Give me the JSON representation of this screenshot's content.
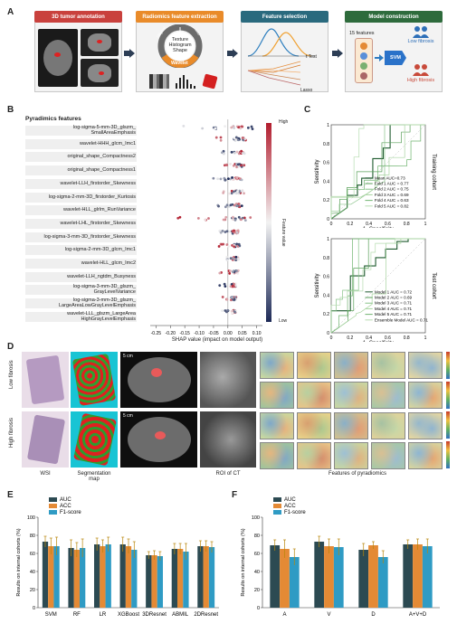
{
  "panelA": {
    "letter": "A",
    "steps": [
      {
        "title": "3D tumor annotation",
        "color": "#c9413d"
      },
      {
        "title": "Radiomics feature extraction",
        "color": "#e98b2a"
      },
      {
        "title": "Feature selection",
        "color": "#2a6a7e"
      },
      {
        "title": "Model construction",
        "color": "#2e6b3c"
      }
    ],
    "donut": {
      "center": [
        "Texture",
        "Histogram",
        "Shape"
      ],
      "outer_left": "Original",
      "outer_right": "LoG",
      "bottom": "Wavelet"
    },
    "selection": {
      "ttest": "t Test",
      "lasso": "Lasso"
    },
    "model": {
      "features": "15 features",
      "svm": "SVM",
      "low": "Low fibrosis",
      "high": "High fibrosis"
    }
  },
  "panelB": {
    "letter": "B",
    "title": "Pyradimics features",
    "features": [
      "log-sigma-5-mm-3D_glszm_\nSmallAreaEmphasis",
      "wavelet-HHH_glcm_Imc1",
      "original_shape_Compactness2",
      "original_shape_Compactness1",
      "wavelet-LLH_firstorder_Skewness",
      "log-sigma-2-mm-3D_firstorder_Kurtosis",
      "wavelet-HLL_glrlm_RunVariance",
      "wavelet-LHL_firstorder_Skewness",
      "log-sigma-3-mm-3D_firstorder_Skewness",
      "log-sigma-2-mm-3D_glcm_Imc1",
      "wavelet-HLL_glcm_Imc2",
      "wavelet-LLH_ngtdm_Busyness",
      "log-sigma-3-mm-3D_glszm_\nGrayLevelVariance",
      "log-sigma-3-mm-3D_glszm_\nLargeAreaLowGrayLevelEmphasis",
      "wavelet-LLL_glszm_LargeArea\nHighGrayLevelEmphasis"
    ],
    "xticks": [
      "-0.25",
      "-0.20",
      "-0.15",
      "-0.10",
      "-0.05",
      "0.00",
      "0.05",
      "0.10"
    ],
    "xlabel": "SHAP value (impact on model output)",
    "colorbar": {
      "high": "High",
      "low": "Low",
      "label": "Feature value"
    }
  },
  "panelC": {
    "letter": "C",
    "top": {
      "side": "Training cohort",
      "ylabel": "Sensitivity",
      "xlabel": "1 -Specificity",
      "ticks": [
        "0",
        "0.2",
        "0.4",
        "0.6",
        "0.8",
        "1"
      ],
      "legend": [
        "Mean AUC=0.73",
        "Fold 1 AUC = 0.77",
        "Fold 2 AUC = 0.75",
        "Fold 3 AUC = 0.69",
        "Fold 4 AUC = 0.63",
        "Fold 5 AUC = 0.82"
      ]
    },
    "bottom": {
      "side": "Test cohort",
      "ylabel": "Sensitivity",
      "xlabel": "1 -Specificity",
      "ticks": [
        "0",
        "0.2",
        "0.4",
        "0.6",
        "0.8",
        "1"
      ],
      "legend": [
        "Model 1 AUC = 0.72",
        "Model 2 AUC = 0.69",
        "Model 3 AUC = 0.71",
        "Model 4 AUC = 0.71",
        "Model 5 AUC = 0.71",
        "Ensemble Model AUC = 0.71"
      ]
    }
  },
  "panelD": {
    "letter": "D",
    "rows": [
      "Low fibrosis",
      "High fibrosis"
    ],
    "scale": "5 cm",
    "captions": [
      "WSI",
      "Segmentation\nmap",
      "ROI of CT",
      "Features of pyradiomics"
    ]
  },
  "panelE": {
    "letter": "E",
    "chart_data": {
      "type": "bar",
      "categories": [
        "SVM",
        "RF",
        "LR",
        "XGBoost",
        "3DResnet",
        "ABMIL",
        "2DResnet"
      ],
      "series": [
        {
          "name": "AUC",
          "values": [
            73,
            66,
            70,
            70,
            58,
            65,
            68
          ],
          "err": [
            6,
            9,
            7,
            8,
            4,
            6,
            6
          ],
          "color": "#2c4a52"
        },
        {
          "name": "ACC",
          "values": [
            68,
            64,
            68,
            68,
            58,
            65,
            68
          ],
          "err": [
            9,
            8,
            7,
            8,
            5,
            6,
            6
          ],
          "color": "#e48a35"
        },
        {
          "name": "F1-score",
          "values": [
            68,
            66,
            70,
            64,
            57,
            62,
            67
          ],
          "err": [
            10,
            10,
            8,
            9,
            5,
            9,
            6
          ],
          "color": "#2f9bc4"
        }
      ],
      "ylabel": "Results on internal cohorts (%)",
      "ylim": [
        0,
        100
      ],
      "yticks": [
        "0",
        "20",
        "40",
        "60",
        "80",
        "100"
      ]
    }
  },
  "panelF": {
    "letter": "F",
    "chart_data": {
      "type": "bar",
      "categories": [
        "A",
        "V",
        "D",
        "A+V+D"
      ],
      "series": [
        {
          "name": "AUC",
          "values": [
            69,
            73,
            64,
            70
          ],
          "err": [
            6,
            6,
            7,
            5
          ],
          "color": "#2c4a52"
        },
        {
          "name": "ACC",
          "values": [
            65,
            68,
            69,
            70
          ],
          "err": [
            10,
            8,
            4,
            6
          ],
          "color": "#e48a35"
        },
        {
          "name": "F1-score",
          "values": [
            56,
            67,
            56,
            68
          ],
          "err": [
            9,
            9,
            7,
            8
          ],
          "color": "#2f9bc4"
        }
      ],
      "ylabel": "Results on internal cohorts (%)",
      "ylim": [
        0,
        100
      ],
      "yticks": [
        "0",
        "20",
        "40",
        "60",
        "80",
        "100"
      ]
    }
  }
}
